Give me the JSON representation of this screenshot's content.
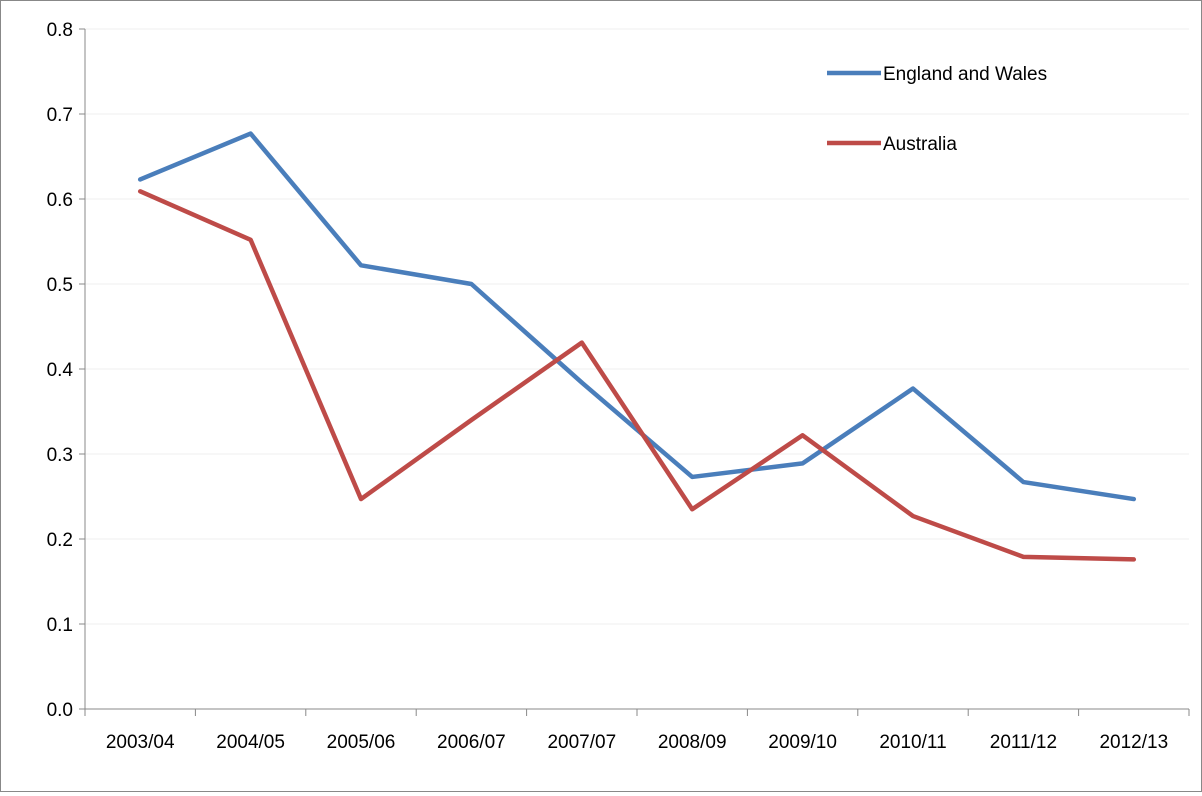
{
  "chart_data": {
    "type": "line",
    "title": "",
    "xlabel": "",
    "ylabel": "",
    "categories": [
      "2003/04",
      "2004/05",
      "2005/06",
      "2006/07",
      "2007/07",
      "2008/09",
      "2009/10",
      "2010/11",
      "2011/12",
      "2012/13"
    ],
    "ylim": [
      0.0,
      0.8
    ],
    "yticks": [
      "0.0",
      "0.1",
      "0.2",
      "0.3",
      "0.4",
      "0.5",
      "0.6",
      "0.7",
      "0.8"
    ],
    "grid": true,
    "legend_position": "top-right",
    "series": [
      {
        "name": "England and Wales",
        "color": "#4a7ebb",
        "values": [
          0.623,
          0.677,
          0.522,
          0.5,
          0.384,
          0.273,
          0.289,
          0.377,
          0.267,
          0.247
        ]
      },
      {
        "name": "Australia",
        "color": "#be4b48",
        "values": [
          0.609,
          0.552,
          0.247,
          0.34,
          0.431,
          0.235,
          0.322,
          0.227,
          0.179,
          0.176
        ]
      }
    ]
  }
}
